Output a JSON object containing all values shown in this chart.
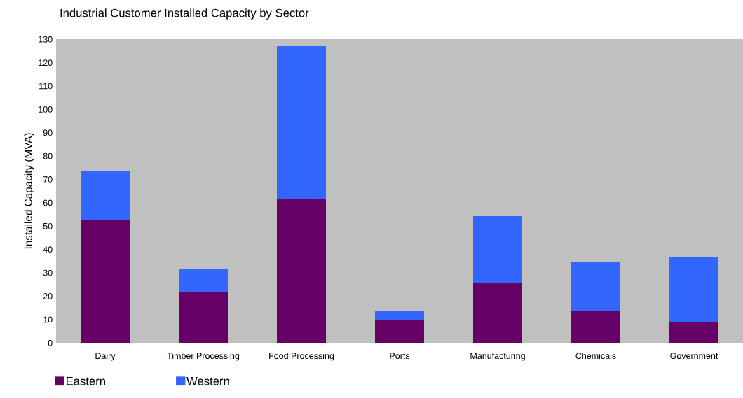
{
  "chart_data": {
    "type": "bar",
    "title": "Industrial Customer Installed Capacity by Sector",
    "ylabel": "Installed Capacity (MVA)",
    "categories": [
      "Dairy",
      "Timber Processing",
      "Food Processing",
      "Ports",
      "Manufacturing",
      "Chemicals",
      "Government"
    ],
    "series": [
      {
        "name": "Eastern",
        "color": "#660066",
        "values": [
          52.4,
          21.6,
          61.7,
          9.9,
          25.5,
          13.8,
          8.7
        ]
      },
      {
        "name": "Western",
        "color": "#3366ff",
        "values": [
          21,
          9.9,
          65.3,
          3.6,
          28.7,
          20.7,
          28.1
        ]
      }
    ],
    "stacked": true,
    "ylim": [
      0,
      130
    ],
    "yticks": [
      0,
      10,
      20,
      30,
      40,
      50,
      60,
      70,
      80,
      90,
      100,
      110,
      120,
      130
    ],
    "grid": false,
    "legend": "bottom left"
  }
}
